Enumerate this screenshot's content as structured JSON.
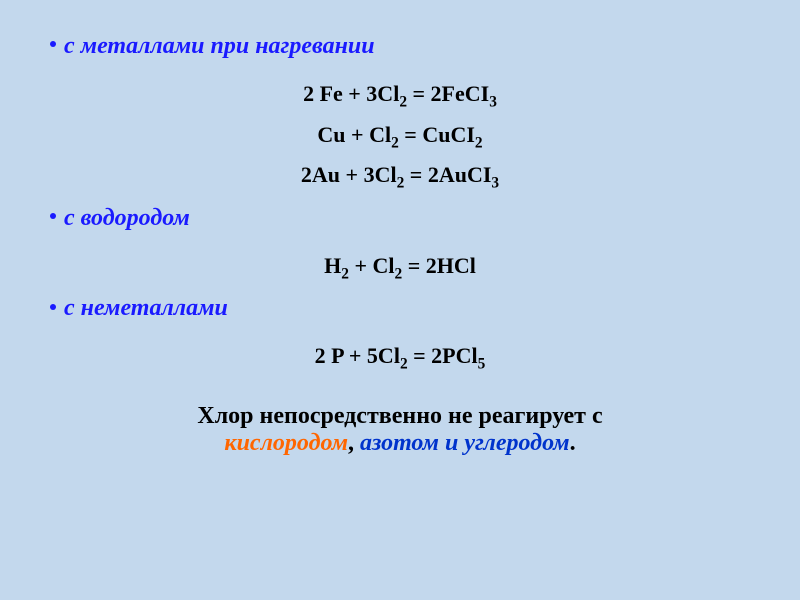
{
  "sections": {
    "metals": {
      "header": "с  металлами при нагревании",
      "equations": [
        "2 Fe + 3Cl₂ =  2FeCI₃",
        "Cu   +  Cl₂ =  CuCI₂",
        "2Au + 3Cl₂ =  2AuCI₃"
      ]
    },
    "hydrogen": {
      "header": "с водородом",
      "equations": [
        "H₂  +  Cl₂  = 2HCl"
      ]
    },
    "nonmetals": {
      "header": "с неметаллами",
      "equations": [
        "2 P  + 5Cl₂  =  2PCl₅"
      ]
    }
  },
  "footer": {
    "main_line1": "Хлор непосредственно не реагирует с",
    "oxygen": "кислородом",
    "comma": ", ",
    "nitrogen": "азотом",
    "and": " и ",
    "carbon": "углеродом",
    "period": "."
  },
  "styling": {
    "background_color": "#c3d8ed",
    "header_color": "#1a1aff",
    "equation_color": "#000000",
    "footer_orange": "#ff6600",
    "footer_blue": "#0033cc",
    "header_fontsize": 24,
    "equation_fontsize": 22,
    "footer_fontsize": 24,
    "font_family": "Times New Roman"
  }
}
